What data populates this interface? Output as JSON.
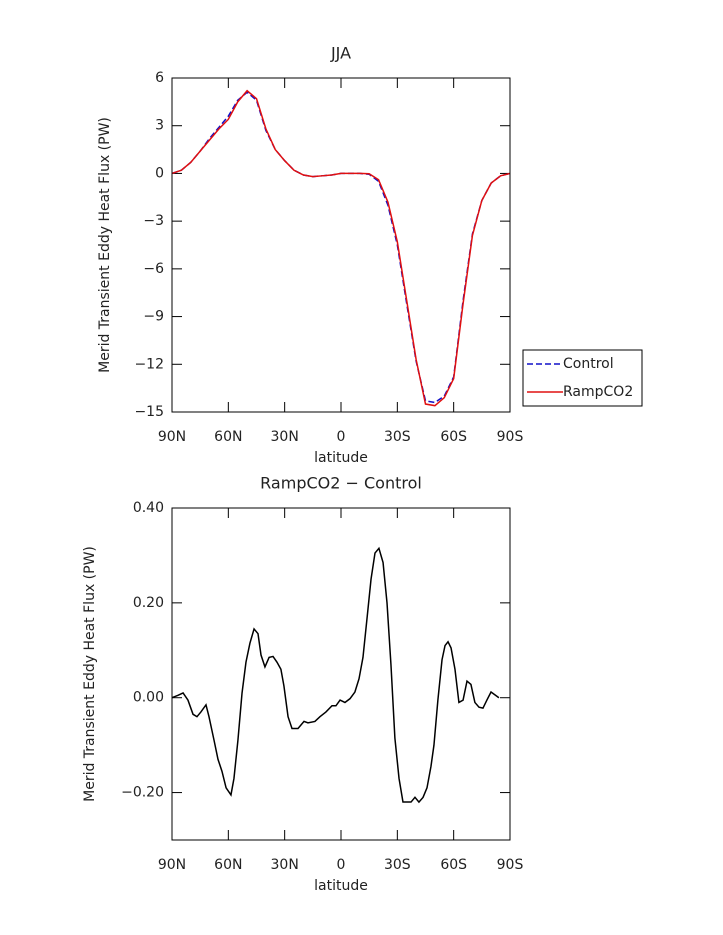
{
  "chart_data": [
    {
      "type": "line",
      "title": "JJA",
      "x_label": "latitude",
      "y_label": "Merid Transient Eddy Heat Flux (PW)",
      "x": [
        90,
        85,
        80,
        75,
        70,
        65,
        60,
        55,
        50,
        45,
        40,
        35,
        30,
        25,
        20,
        15,
        10,
        5,
        0,
        -5,
        -10,
        -15,
        -20,
        -25,
        -30,
        -35,
        -40,
        -45,
        -50,
        -55,
        -60,
        -65,
        -70,
        -75,
        -80,
        -85,
        -90
      ],
      "series": [
        {
          "name": "Control",
          "color": "#1010c8",
          "dash": "dashed",
          "values": [
            0,
            0.2,
            0.7,
            1.4,
            2.2,
            2.9,
            3.6,
            4.6,
            5.1,
            4.6,
            2.7,
            1.5,
            0.8,
            0.2,
            -0.1,
            -0.2,
            -0.15,
            -0.1,
            0,
            0,
            0,
            -0.05,
            -0.5,
            -2.0,
            -4.5,
            -8.2,
            -11.8,
            -14.3,
            -14.4,
            -14.0,
            -12.8,
            -8.0,
            -3.8,
            -1.7,
            -0.6,
            -0.15,
            0
          ]
        },
        {
          "name": "RampCO2",
          "color": "#e01010",
          "dash": "solid",
          "values": [
            0,
            0.2,
            0.7,
            1.4,
            2.1,
            2.8,
            3.4,
            4.5,
            5.2,
            4.7,
            2.8,
            1.5,
            0.8,
            0.2,
            -0.1,
            -0.2,
            -0.15,
            -0.1,
            0,
            0,
            0,
            -0.02,
            -0.4,
            -1.8,
            -4.3,
            -8.0,
            -11.7,
            -14.5,
            -14.6,
            -14.1,
            -12.9,
            -8.2,
            -3.9,
            -1.7,
            -0.6,
            -0.15,
            0
          ]
        }
      ],
      "xlim": [
        90,
        -90
      ],
      "xticks": [
        {
          "value": 90,
          "label": "90N"
        },
        {
          "value": 60,
          "label": "60N"
        },
        {
          "value": 30,
          "label": "30N"
        },
        0,
        {
          "value": -30,
          "label": "30S"
        },
        {
          "value": -60,
          "label": "60S"
        },
        {
          "value": -90,
          "label": "90S"
        }
      ],
      "ylim": [
        -15,
        6
      ],
      "yticks": [
        6,
        3,
        0,
        {
          "value": -3,
          "label": "−3"
        },
        {
          "value": -6,
          "label": "−6"
        },
        {
          "value": -9,
          "label": "−9"
        },
        {
          "value": -12,
          "label": "−12"
        },
        {
          "value": -15,
          "label": "−15"
        }
      ],
      "legend": "right"
    },
    {
      "type": "line",
      "title": "RampCO2 − Control",
      "x_label": "latitude",
      "y_label": "Merid Transient Eddy Heat Flux (PW)",
      "x": [
        90,
        86.8,
        84.1,
        81.5,
        78.8,
        76.7,
        74.6,
        71.9,
        70.3,
        67.6,
        65.5,
        63.4,
        61.2,
        58.6,
        57.0,
        54.9,
        52.7,
        50.6,
        48.5,
        46.3,
        44.2,
        42.6,
        40.5,
        38.3,
        36.2,
        34.1,
        32.0,
        30.4,
        28.2,
        26.1,
        22.9,
        19.7,
        17.6,
        13.9,
        11.2,
        8.0,
        4.8,
        2.7,
        0.5,
        -2.1,
        -4.8,
        -7.4,
        -9.6,
        -11.7,
        -13.8,
        -16.0,
        -18.1,
        -20.2,
        -22.4,
        -24.5,
        -26.6,
        -28.7,
        -30.9,
        -33.0,
        -35.1,
        -37.3,
        -39.4,
        -41.5,
        -43.7,
        -45.8,
        -47.9,
        -49.5,
        -51.6,
        -53.8,
        -55.4,
        -57.0,
        -58.6,
        -60.7,
        -62.8,
        -65.0,
        -67.1,
        -69.2,
        -71.3,
        -73.5,
        -75.6,
        -77.7,
        -79.9,
        -82.0,
        -84.1
      ],
      "color": "#000000",
      "values": [
        0,
        0.005,
        0.01,
        -0.005,
        -0.035,
        -0.04,
        -0.03,
        -0.015,
        -0.04,
        -0.09,
        -0.13,
        -0.155,
        -0.19,
        -0.205,
        -0.17,
        -0.09,
        0.01,
        0.075,
        0.115,
        0.145,
        0.135,
        0.09,
        0.065,
        0.085,
        0.087,
        0.075,
        0.06,
        0.025,
        -0.04,
        -0.065,
        -0.065,
        -0.05,
        -0.053,
        -0.05,
        -0.04,
        -0.03,
        -0.017,
        -0.017,
        -0.005,
        -0.01,
        -0.002,
        0.012,
        0.04,
        0.085,
        0.165,
        0.25,
        0.305,
        0.315,
        0.285,
        0.2,
        0.07,
        -0.085,
        -0.17,
        -0.22,
        -0.22,
        -0.22,
        -0.21,
        -0.22,
        -0.21,
        -0.19,
        -0.145,
        -0.1,
        -0.005,
        0.08,
        0.11,
        0.118,
        0.105,
        0.06,
        -0.01,
        -0.005,
        0.035,
        0.028,
        -0.01,
        -0.02,
        -0.022,
        -0.005,
        0.012,
        0.006,
        0
      ],
      "xlim": [
        90,
        -90
      ],
      "xticks": [
        {
          "value": 90,
          "label": "90N"
        },
        {
          "value": 60,
          "label": "60N"
        },
        {
          "value": 30,
          "label": "30N"
        },
        0,
        {
          "value": -30,
          "label": "30S"
        },
        {
          "value": -60,
          "label": "60S"
        },
        {
          "value": -90,
          "label": "90S"
        }
      ],
      "ylim": [
        -0.3,
        0.4
      ],
      "yticks": [
        {
          "value": 0.4,
          "label": "0.40"
        },
        {
          "value": 0.2,
          "label": "0.20"
        },
        {
          "value": 0,
          "label": "0.00"
        },
        {
          "value": -0.2,
          "label": "−0.20"
        }
      ]
    }
  ]
}
